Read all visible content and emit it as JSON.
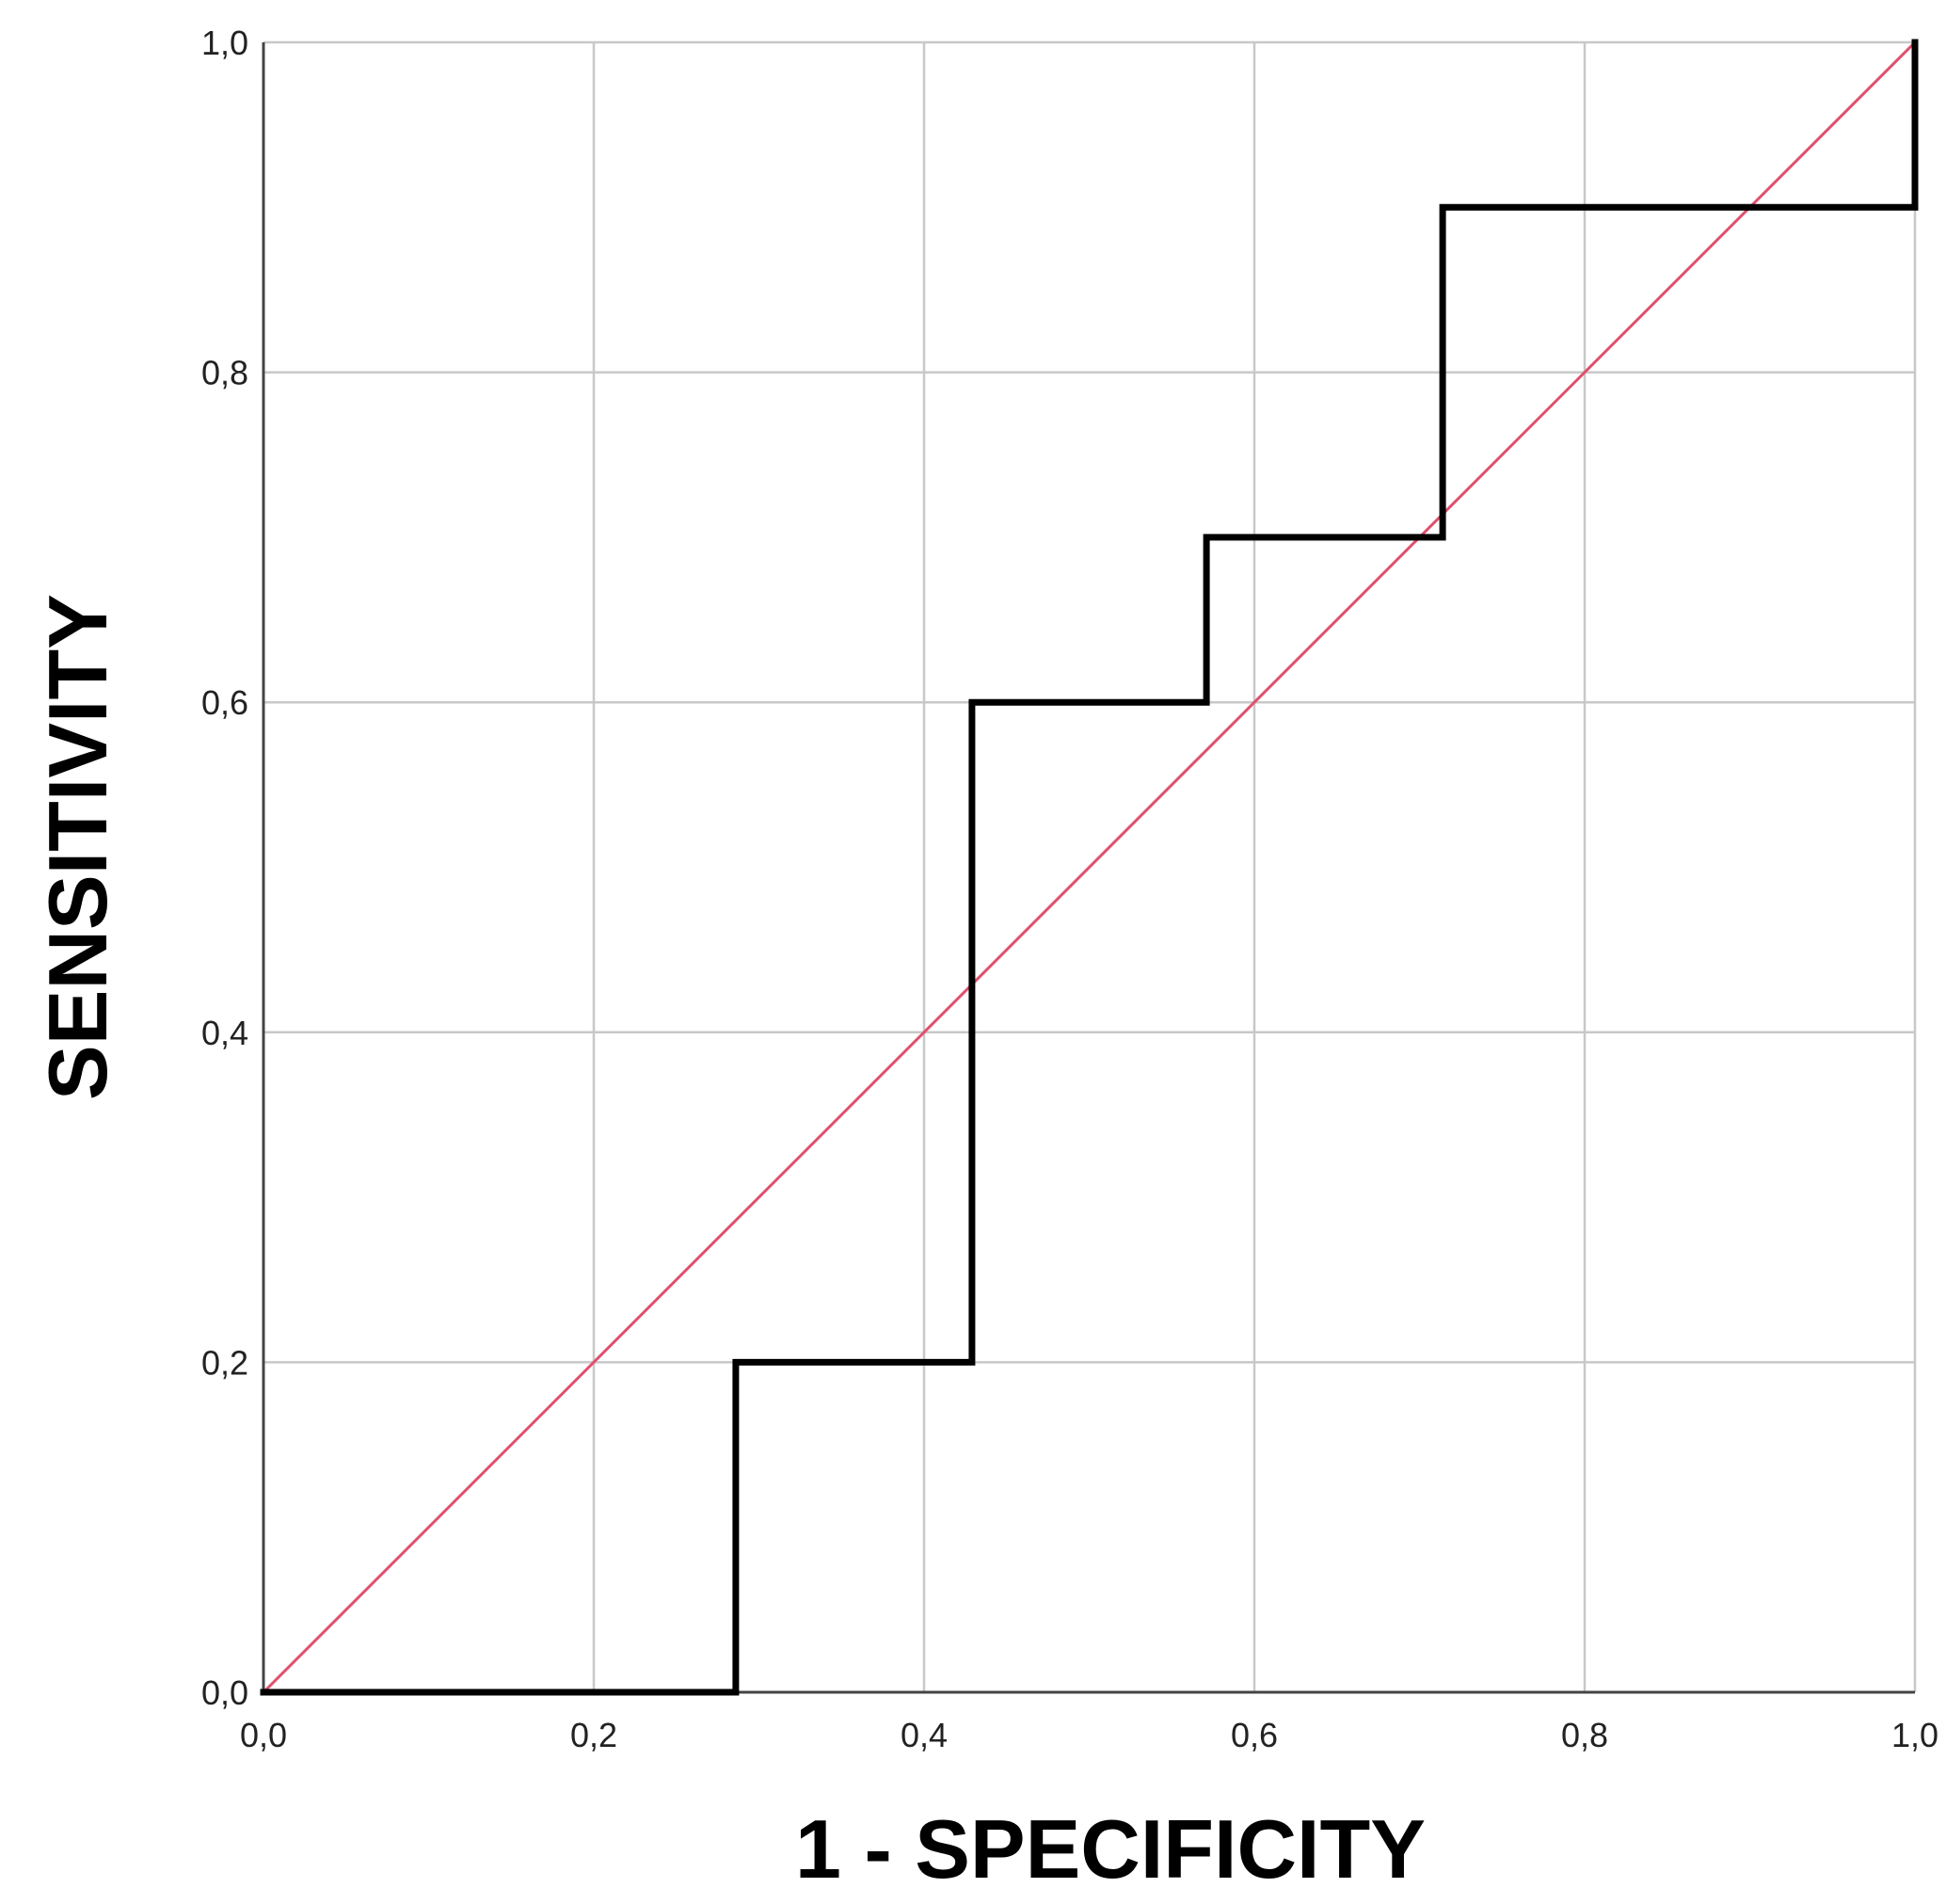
{
  "chart_data": {
    "type": "line",
    "xlabel": "1 - SPECIFICITY",
    "ylabel": "SENSITIVITY",
    "xlim": [
      0,
      1
    ],
    "ylim": [
      0,
      1
    ],
    "x_ticks": [
      "0,0",
      "0,2",
      "0,4",
      "0,6",
      "0,8",
      "1,0"
    ],
    "y_ticks": [
      "0,0",
      "0,2",
      "0,4",
      "0,6",
      "0,8",
      "1,0"
    ],
    "grid": true,
    "legend": "none",
    "series": [
      {
        "role": "roc-curve",
        "color": "#000000",
        "x": [
          0.0,
          0.286,
          0.286,
          0.429,
          0.429,
          0.571,
          0.571,
          0.714,
          0.714,
          1.0,
          1.0
        ],
        "y": [
          0.0,
          0.0,
          0.2,
          0.2,
          0.6,
          0.6,
          0.7,
          0.7,
          0.9,
          0.9,
          1.0
        ]
      },
      {
        "role": "reference-line",
        "color": "#e0506e",
        "x": [
          0.0,
          1.0
        ],
        "y": [
          0.0,
          1.0
        ]
      }
    ]
  }
}
